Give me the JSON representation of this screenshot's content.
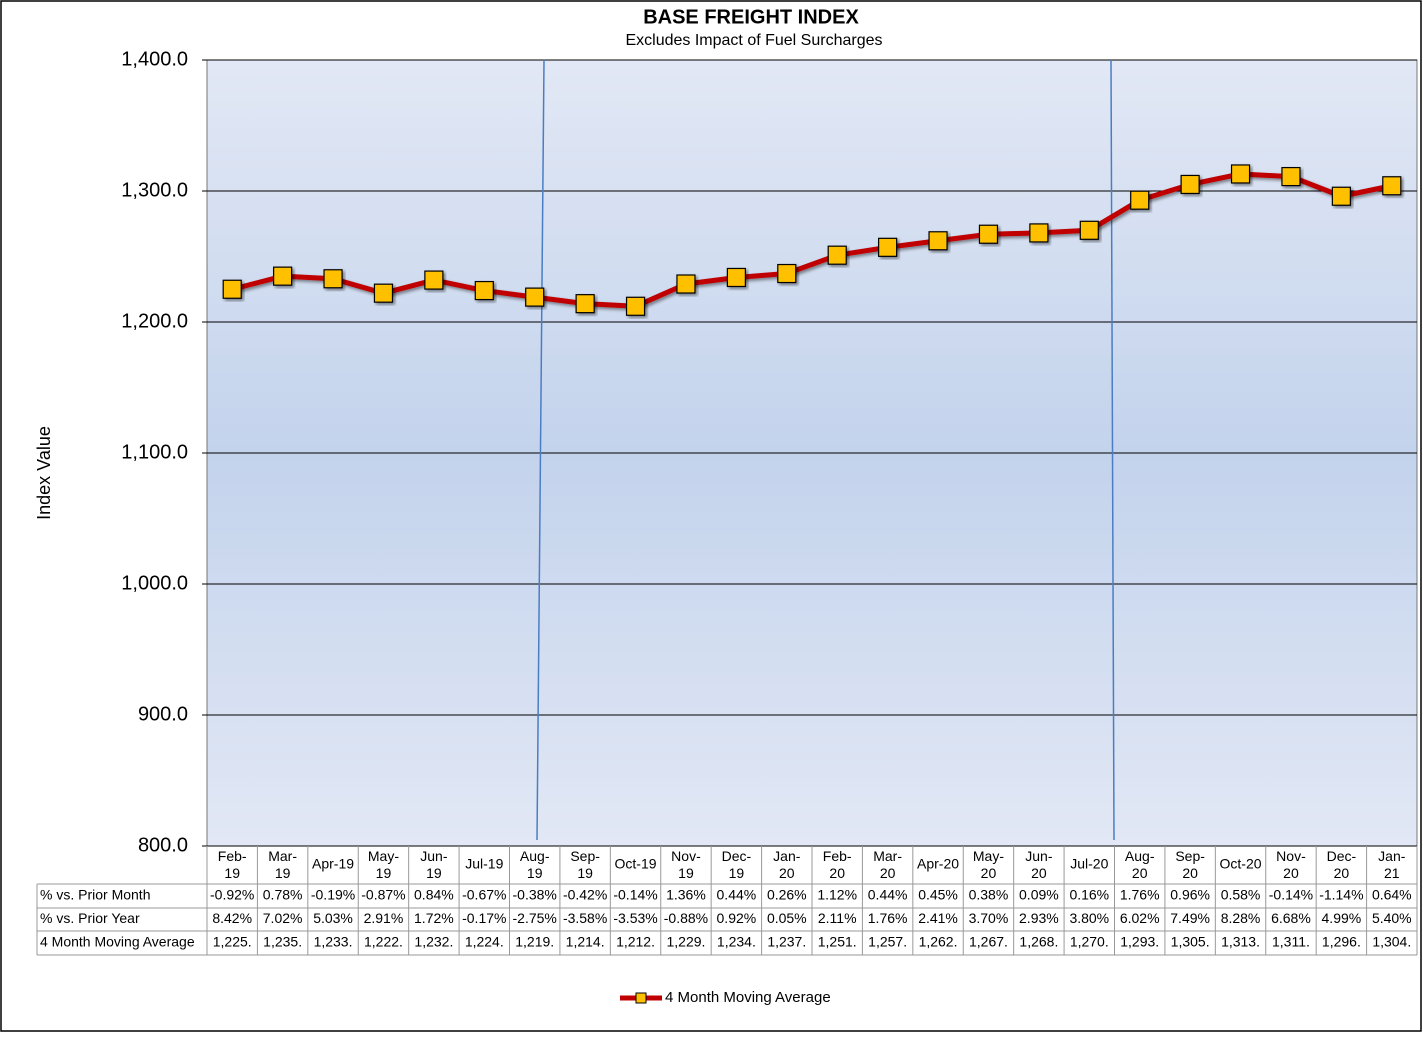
{
  "chart_data": {
    "type": "line",
    "title": "BASE FREIGHT INDEX",
    "subtitle": "Excludes Impact of Fuel Surcharges",
    "y_label": "Index Value",
    "categories": [
      "Feb-19",
      "Mar-19",
      "Apr-19",
      "May-19",
      "Jun-19",
      "Jul-19",
      "Aug-19",
      "Sep-19",
      "Oct-19",
      "Nov-19",
      "Dec-19",
      "Jan-20",
      "Feb-20",
      "Mar-20",
      "Apr-20",
      "May-20",
      "Jun-20",
      "Jul-20",
      "Aug-20",
      "Sep-20",
      "Oct-20",
      "Nov-20",
      "Dec-20",
      "Jan-21"
    ],
    "ylim": [
      800,
      1400
    ],
    "yticks": [
      {
        "value": 800,
        "label": "800.0"
      },
      {
        "value": 900,
        "label": "900.0"
      },
      {
        "value": 1000,
        "label": "1,000.0"
      },
      {
        "value": 1100,
        "label": "1,100.0"
      },
      {
        "value": 1200,
        "label": "1,200.0"
      },
      {
        "value": 1300,
        "label": "1,300.0"
      },
      {
        "value": 1400,
        "label": "1,400.0"
      }
    ],
    "grid": true,
    "series": [
      {
        "name": "4 Month Moving Average",
        "color": "#c00000",
        "marker_color": "#ffc000",
        "values": [
          1225,
          1235,
          1233,
          1222,
          1232,
          1224,
          1219,
          1214,
          1212,
          1229,
          1234,
          1237,
          1251,
          1257,
          1262,
          1267,
          1268,
          1270,
          1293,
          1305,
          1313,
          1311,
          1296,
          1304
        ],
        "value_labels": [
          "1,225.",
          "1,235.",
          "1,233.",
          "1,222.",
          "1,232.",
          "1,224.",
          "1,219.",
          "1,214.",
          "1,212.",
          "1,229.",
          "1,234.",
          "1,237.",
          "1,251.",
          "1,257.",
          "1,262.",
          "1,267.",
          "1,268.",
          "1,270.",
          "1,293.",
          "1,305.",
          "1,313.",
          "1,311.",
          "1,296.",
          "1,304."
        ]
      }
    ],
    "data_table": {
      "rows": [
        {
          "name": "% vs. Prior Month",
          "values": [
            -0.92,
            0.78,
            -0.19,
            -0.87,
            0.84,
            -0.67,
            -0.38,
            -0.42,
            -0.14,
            1.36,
            0.44,
            0.26,
            1.12,
            0.44,
            0.45,
            0.38,
            0.09,
            0.16,
            1.76,
            0.96,
            0.58,
            -0.14,
            -1.14,
            0.64
          ],
          "value_labels": [
            "-0.92%",
            "0.78%",
            "-0.19%",
            "-0.87%",
            "0.84%",
            "-0.67%",
            "-0.38%",
            "-0.42%",
            "-0.14%",
            "1.36%",
            "0.44%",
            "0.26%",
            "1.12%",
            "0.44%",
            "0.45%",
            "0.38%",
            "0.09%",
            "0.16%",
            "1.76%",
            "0.96%",
            "0.58%",
            "-0.14%",
            "-1.14%",
            "0.64%"
          ]
        },
        {
          "name": "% vs. Prior Year",
          "values": [
            8.42,
            7.02,
            5.03,
            2.91,
            1.72,
            -0.17,
            -2.75,
            -3.58,
            -3.53,
            -0.88,
            0.92,
            0.05,
            2.11,
            1.76,
            2.41,
            3.7,
            2.93,
            3.8,
            6.02,
            7.49,
            8.28,
            6.68,
            4.99,
            5.4
          ],
          "value_labels": [
            "8.42%",
            "7.02%",
            "5.03%",
            "2.91%",
            "1.72%",
            "-0.17%",
            "-2.75%",
            "-3.58%",
            "-3.53%",
            "-0.88%",
            "0.92%",
            "0.05%",
            "2.11%",
            "1.76%",
            "2.41%",
            "3.70%",
            "2.93%",
            "3.80%",
            "6.02%",
            "7.49%",
            "8.28%",
            "6.68%",
            "4.99%",
            "5.40%"
          ]
        }
      ]
    }
  }
}
